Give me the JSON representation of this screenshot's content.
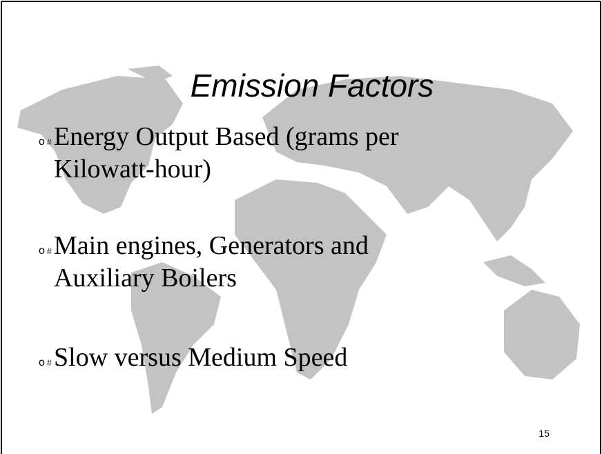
{
  "slide": {
    "title": "Emission Factors",
    "bullets": [
      {
        "marker": "o",
        "glyph": "#",
        "lines": [
          "Energy Output Based (grams per",
          "Kilowatt-hour)"
        ]
      },
      {
        "marker": "o",
        "glyph": "#",
        "lines": [
          "Main engines, Generators  and",
          "Auxiliary Boilers"
        ]
      },
      {
        "marker": "o",
        "glyph": "#",
        "lines": [
          "Slow versus Medium Speed"
        ]
      }
    ],
    "page_number": "15"
  }
}
